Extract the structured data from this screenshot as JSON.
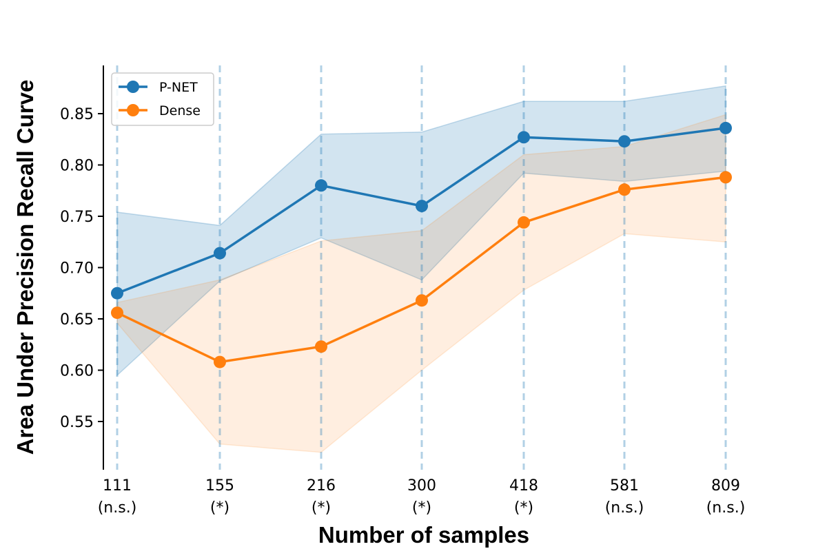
{
  "chart_data": {
    "type": "line",
    "xlabel": "Number of samples",
    "ylabel": "Area Under Precision Recall Curve",
    "categories": [
      "111",
      "155",
      "216",
      "300",
      "418",
      "581",
      "809"
    ],
    "category_notes": [
      "(n.s.)",
      "(*)",
      "(*)",
      "(*)",
      "(*)",
      "(n.s.)",
      "(n.s.)"
    ],
    "yticks": [
      "0.55",
      "0.60",
      "0.65",
      "0.70",
      "0.75",
      "0.80",
      "0.85"
    ],
    "ylim": [
      0.503,
      0.897
    ],
    "legend_position": "top-left",
    "vertical_guides": true,
    "series": [
      {
        "name": "P-NET",
        "color": "#1f77b4",
        "values": [
          0.675,
          0.714,
          0.78,
          0.76,
          0.827,
          0.823,
          0.836
        ],
        "band_lower": [
          0.595,
          0.687,
          0.729,
          0.688,
          0.792,
          0.784,
          0.794
        ],
        "band_upper": [
          0.754,
          0.741,
          0.83,
          0.832,
          0.862,
          0.862,
          0.877
        ]
      },
      {
        "name": "Dense",
        "color": "#ff7f0e",
        "values": [
          0.656,
          0.608,
          0.623,
          0.668,
          0.744,
          0.776,
          0.788
        ],
        "band_lower": [
          0.646,
          0.528,
          0.52,
          0.6,
          0.678,
          0.733,
          0.725
        ],
        "band_upper": [
          0.666,
          0.688,
          0.726,
          0.736,
          0.81,
          0.818,
          0.849
        ]
      }
    ]
  }
}
